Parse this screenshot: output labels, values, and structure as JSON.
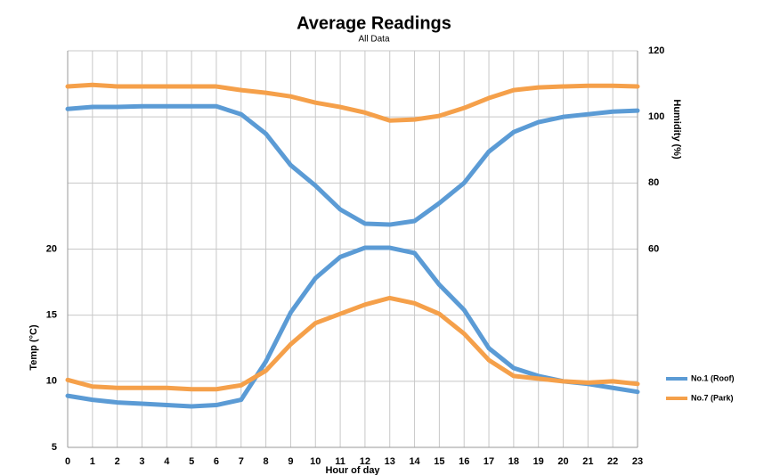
{
  "chart_data": {
    "type": "line",
    "title": "Average Readings",
    "subtitle": "All Data",
    "x_label": "Hour of day",
    "y_label": "Temp (°C)",
    "y2_label": "Humidity (%)",
    "x": [
      0,
      1,
      2,
      3,
      4,
      5,
      6,
      7,
      8,
      9,
      10,
      11,
      12,
      13,
      14,
      15,
      16,
      17,
      18,
      19,
      20,
      21,
      22,
      23
    ],
    "xlim": [
      0,
      23
    ],
    "xticks": [
      0,
      1,
      2,
      3,
      4,
      5,
      6,
      7,
      8,
      9,
      10,
      11,
      12,
      13,
      14,
      15,
      16,
      17,
      18,
      19,
      20,
      21,
      22,
      23
    ],
    "ylim": [
      5,
      35
    ],
    "yticks": [
      5,
      10,
      15,
      20
    ],
    "y2lim": [
      0,
      120
    ],
    "y2ticks": [
      60,
      80,
      100,
      120
    ],
    "grid": true,
    "legend": "right",
    "series": [
      {
        "name": "No.1 (Roof)",
        "color": "#5b9bd5",
        "values": [
          8.9,
          8.6,
          8.4,
          8.3,
          8.2,
          8.1,
          8.2,
          8.6,
          11.5,
          15.2,
          17.8,
          19.4,
          20.1,
          20.1,
          19.7,
          17.3,
          15.4,
          12.5,
          11.0,
          10.4,
          10.0,
          9.8,
          9.5,
          9.2
        ]
      },
      {
        "name": "No.7 (Park)",
        "color": "#f5a04a",
        "values": [
          10.1,
          9.6,
          9.5,
          9.5,
          9.5,
          9.4,
          9.4,
          9.7,
          10.8,
          12.8,
          14.4,
          15.1,
          15.8,
          16.3,
          15.9,
          15.1,
          13.6,
          11.6,
          10.4,
          10.2,
          10.0,
          9.9,
          10.0,
          9.8
        ]
      },
      {
        "color": "#5b9bd5",
        "axis": "y2",
        "values": [
          102.4,
          103,
          103,
          103.2,
          103.2,
          103.2,
          103.2,
          100.8,
          94.9,
          85.4,
          79.2,
          72,
          67.7,
          67.4,
          68.5,
          73.9,
          80,
          89.5,
          95.4,
          98.4,
          100,
          100.8,
          101.6,
          101.9
        ]
      },
      {
        "color": "#f5a04a",
        "axis": "y2",
        "values": [
          109.2,
          109.7,
          109.2,
          109.2,
          109.2,
          109.2,
          109.2,
          108.1,
          107.3,
          106.2,
          104.3,
          103,
          101.3,
          98.9,
          99.2,
          100.3,
          102.7,
          105.7,
          108.1,
          108.9,
          109.2,
          109.4,
          109.4,
          109.2
        ]
      }
    ]
  }
}
